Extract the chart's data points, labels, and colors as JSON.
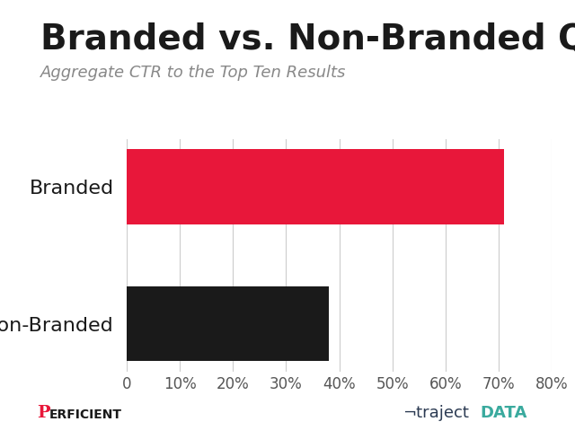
{
  "title": "Branded vs. Non-Branded Queries",
  "subtitle": "Aggregate CTR to the Top Ten Results",
  "categories": [
    "Non-Branded",
    "Branded"
  ],
  "values": [
    0.38,
    0.71
  ],
  "bar_colors": [
    "#1a1a1a",
    "#e8173a"
  ],
  "xlim": [
    0,
    0.8
  ],
  "xticks": [
    0,
    0.1,
    0.2,
    0.3,
    0.4,
    0.5,
    0.6,
    0.7,
    0.8
  ],
  "xtick_labels": [
    "0",
    "10%",
    "20%",
    "30%",
    "40%",
    "50%",
    "60%",
    "70%",
    "80%"
  ],
  "background_color": "#ffffff",
  "title_fontsize": 28,
  "subtitle_fontsize": 13,
  "ylabel_fontsize": 16,
  "xtick_fontsize": 12,
  "grid_color": "#cccccc",
  "perficient_p_color": "#e8173a",
  "perficient_text_color": "#1a1a1a",
  "traject_color": "#2b3a52",
  "data_color": "#3aaa9e",
  "bar_height": 0.55
}
